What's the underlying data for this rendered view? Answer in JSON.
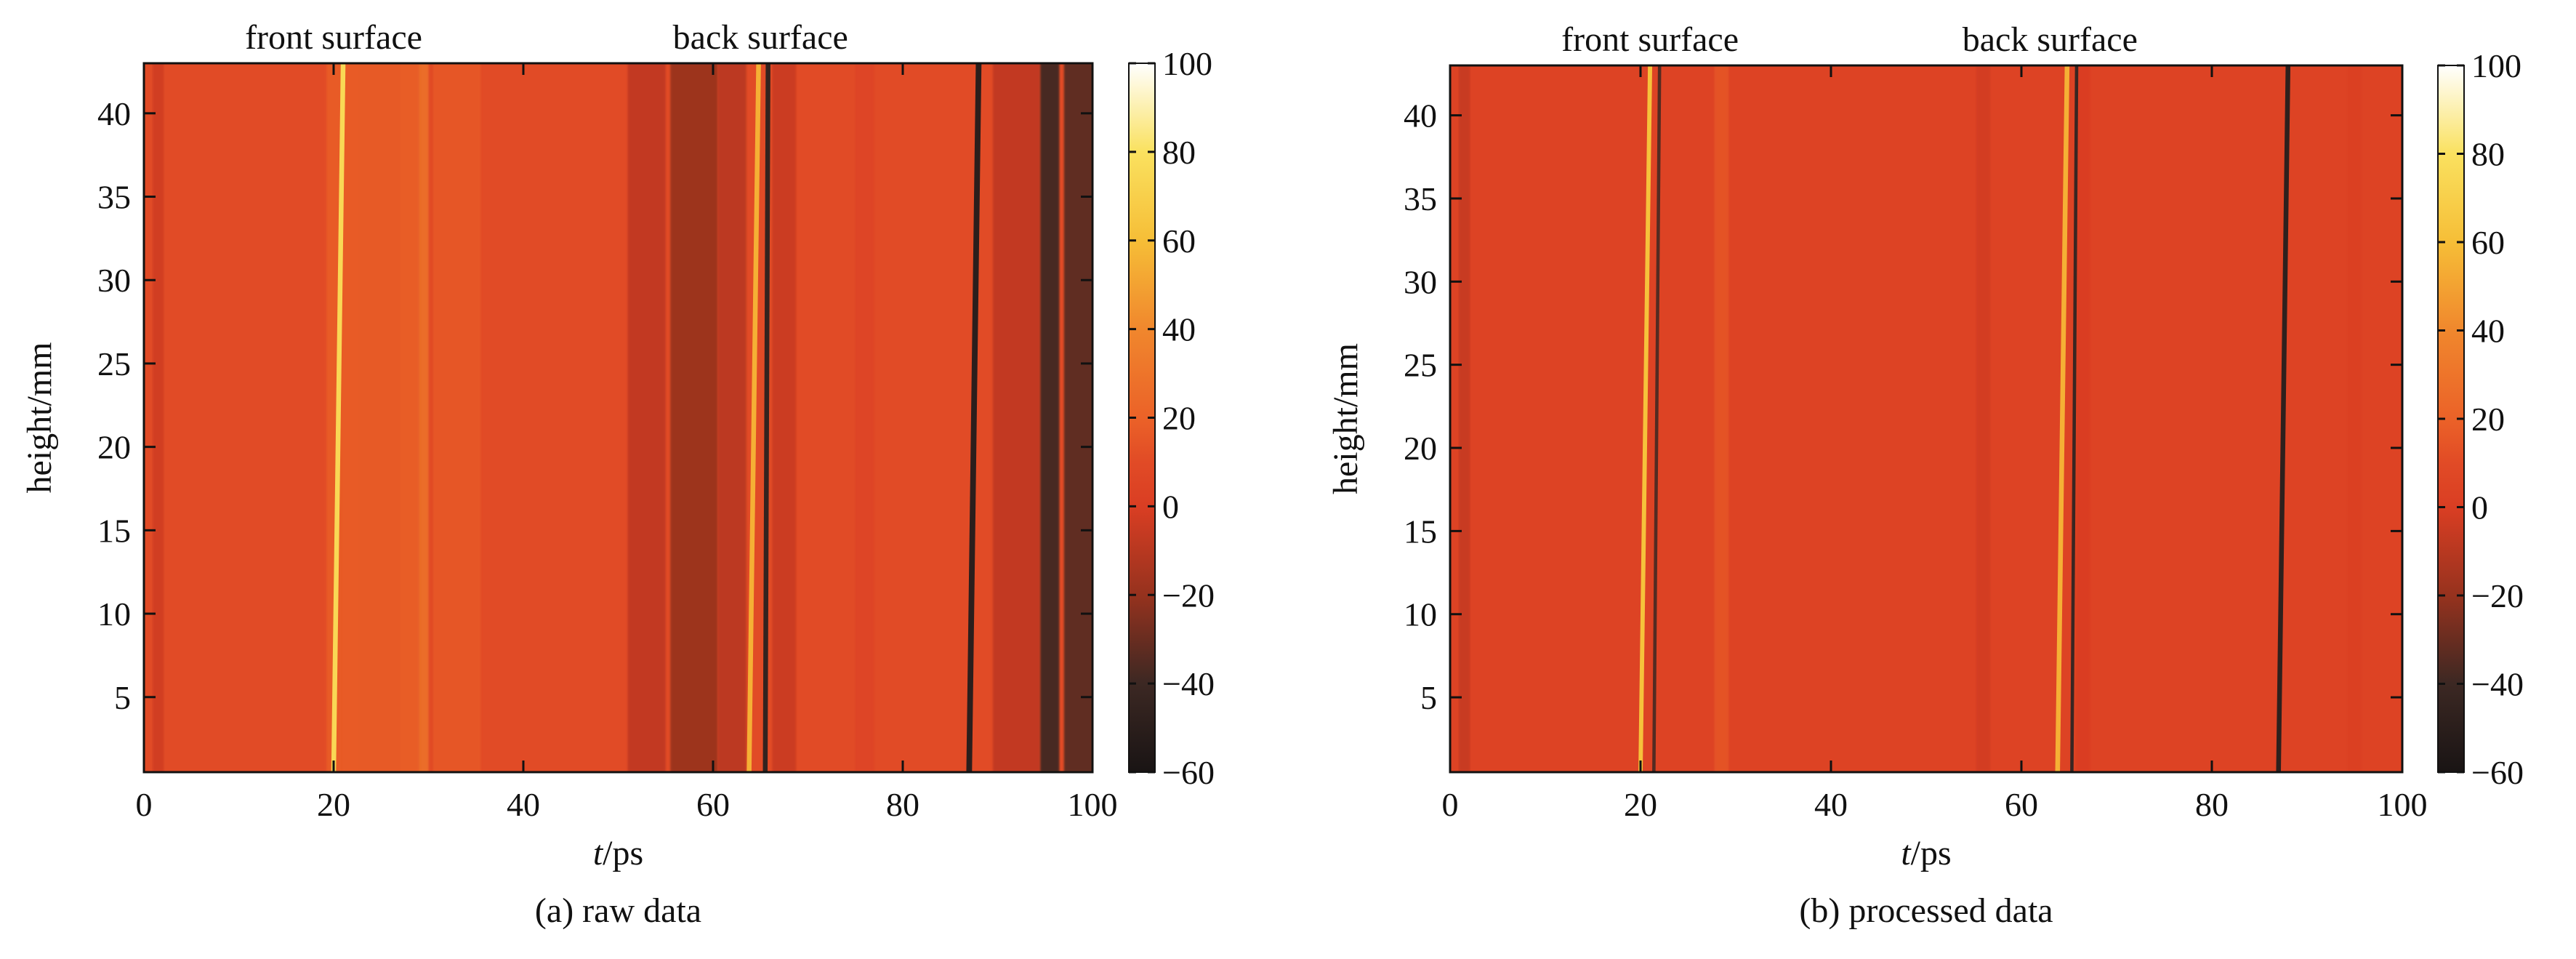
{
  "chart_data": [
    {
      "type": "heatmap",
      "caption": "(a) raw data",
      "xlabel_italic": "t",
      "xlabel_unit": "/ps",
      "ylabel": "height/mm",
      "xlim": [
        0,
        100
      ],
      "ylim": [
        0.5,
        43
      ],
      "xticks": [
        0,
        20,
        40,
        60,
        80,
        100
      ],
      "yticks": [
        5,
        10,
        15,
        20,
        25,
        30,
        35,
        40
      ],
      "colorbar": {
        "min": -60,
        "max": 100,
        "ticks": [
          100,
          80,
          60,
          40,
          20,
          0,
          -20,
          -40,
          -60
        ]
      },
      "annotations": [
        {
          "text": "front surface",
          "x": 20
        },
        {
          "text": "back surface",
          "x": 65
        }
      ],
      "background_value": 10,
      "bands": [
        {
          "t": 1.5,
          "width": 1.2,
          "value": -3
        },
        {
          "t": 21,
          "width": 3.5,
          "value": 18
        },
        {
          "t": 28.5,
          "width": 3,
          "value": 28
        },
        {
          "t": 25,
          "width": 8,
          "value": 17
        },
        {
          "t": 33,
          "width": 5,
          "value": 16
        },
        {
          "t": 53,
          "width": 4,
          "value": -8
        },
        {
          "t": 58,
          "width": 5,
          "value": -20
        },
        {
          "t": 62,
          "width": 3,
          "value": -10
        },
        {
          "t": 67.5,
          "width": 2.5,
          "value": -5
        },
        {
          "t": 76,
          "width": 2,
          "value": 5
        },
        {
          "t": 92,
          "width": 5,
          "value": -8
        },
        {
          "t": 95.5,
          "width": 2,
          "value": -42
        },
        {
          "t": 98.5,
          "width": 3,
          "value": -35
        }
      ],
      "lines": [
        {
          "t_bottom": 20,
          "t_top": 21,
          "value": 75,
          "width": 0.5
        },
        {
          "t_bottom": 63.8,
          "t_top": 64.8,
          "value": 55,
          "width": 0.5
        },
        {
          "t_bottom": 65.5,
          "t_top": 65.8,
          "value": -45,
          "width": 0.5
        },
        {
          "t_bottom": 87,
          "t_top": 88,
          "value": -50,
          "width": 0.6
        }
      ]
    },
    {
      "type": "heatmap",
      "caption": "(b) processed data",
      "xlabel_italic": "t",
      "xlabel_unit": "/ps",
      "ylabel": "height/mm",
      "xlim": [
        0,
        100
      ],
      "ylim": [
        0.5,
        43
      ],
      "xticks": [
        0,
        20,
        40,
        60,
        80,
        100
      ],
      "yticks": [
        5,
        10,
        15,
        20,
        25,
        30,
        35,
        40
      ],
      "colorbar": {
        "min": -60,
        "max": 100,
        "ticks": [
          100,
          80,
          60,
          40,
          20,
          0,
          -20,
          -40,
          -60
        ]
      },
      "annotations": [
        {
          "text": "front surface",
          "x": 21
        },
        {
          "text": "back surface",
          "x": 63
        }
      ],
      "background_value": 4,
      "bands": [
        {
          "t": 1.5,
          "width": 1.2,
          "value": -6
        },
        {
          "t": 28.5,
          "width": 1.5,
          "value": 14
        },
        {
          "t": 56,
          "width": 1.5,
          "value": -2
        },
        {
          "t": 66.5,
          "width": 1.5,
          "value": 0
        },
        {
          "t": 95,
          "width": 1.5,
          "value": 1
        }
      ],
      "lines": [
        {
          "t_bottom": 20,
          "t_top": 21,
          "value": 62,
          "width": 0.45
        },
        {
          "t_bottom": 21.4,
          "t_top": 22,
          "value": -35,
          "width": 0.35
        },
        {
          "t_bottom": 63.8,
          "t_top": 64.8,
          "value": 55,
          "width": 0.5
        },
        {
          "t_bottom": 65.3,
          "t_top": 65.8,
          "value": -42,
          "width": 0.35
        },
        {
          "t_bottom": 87,
          "t_top": 88,
          "value": -48,
          "width": 0.5
        }
      ]
    }
  ]
}
